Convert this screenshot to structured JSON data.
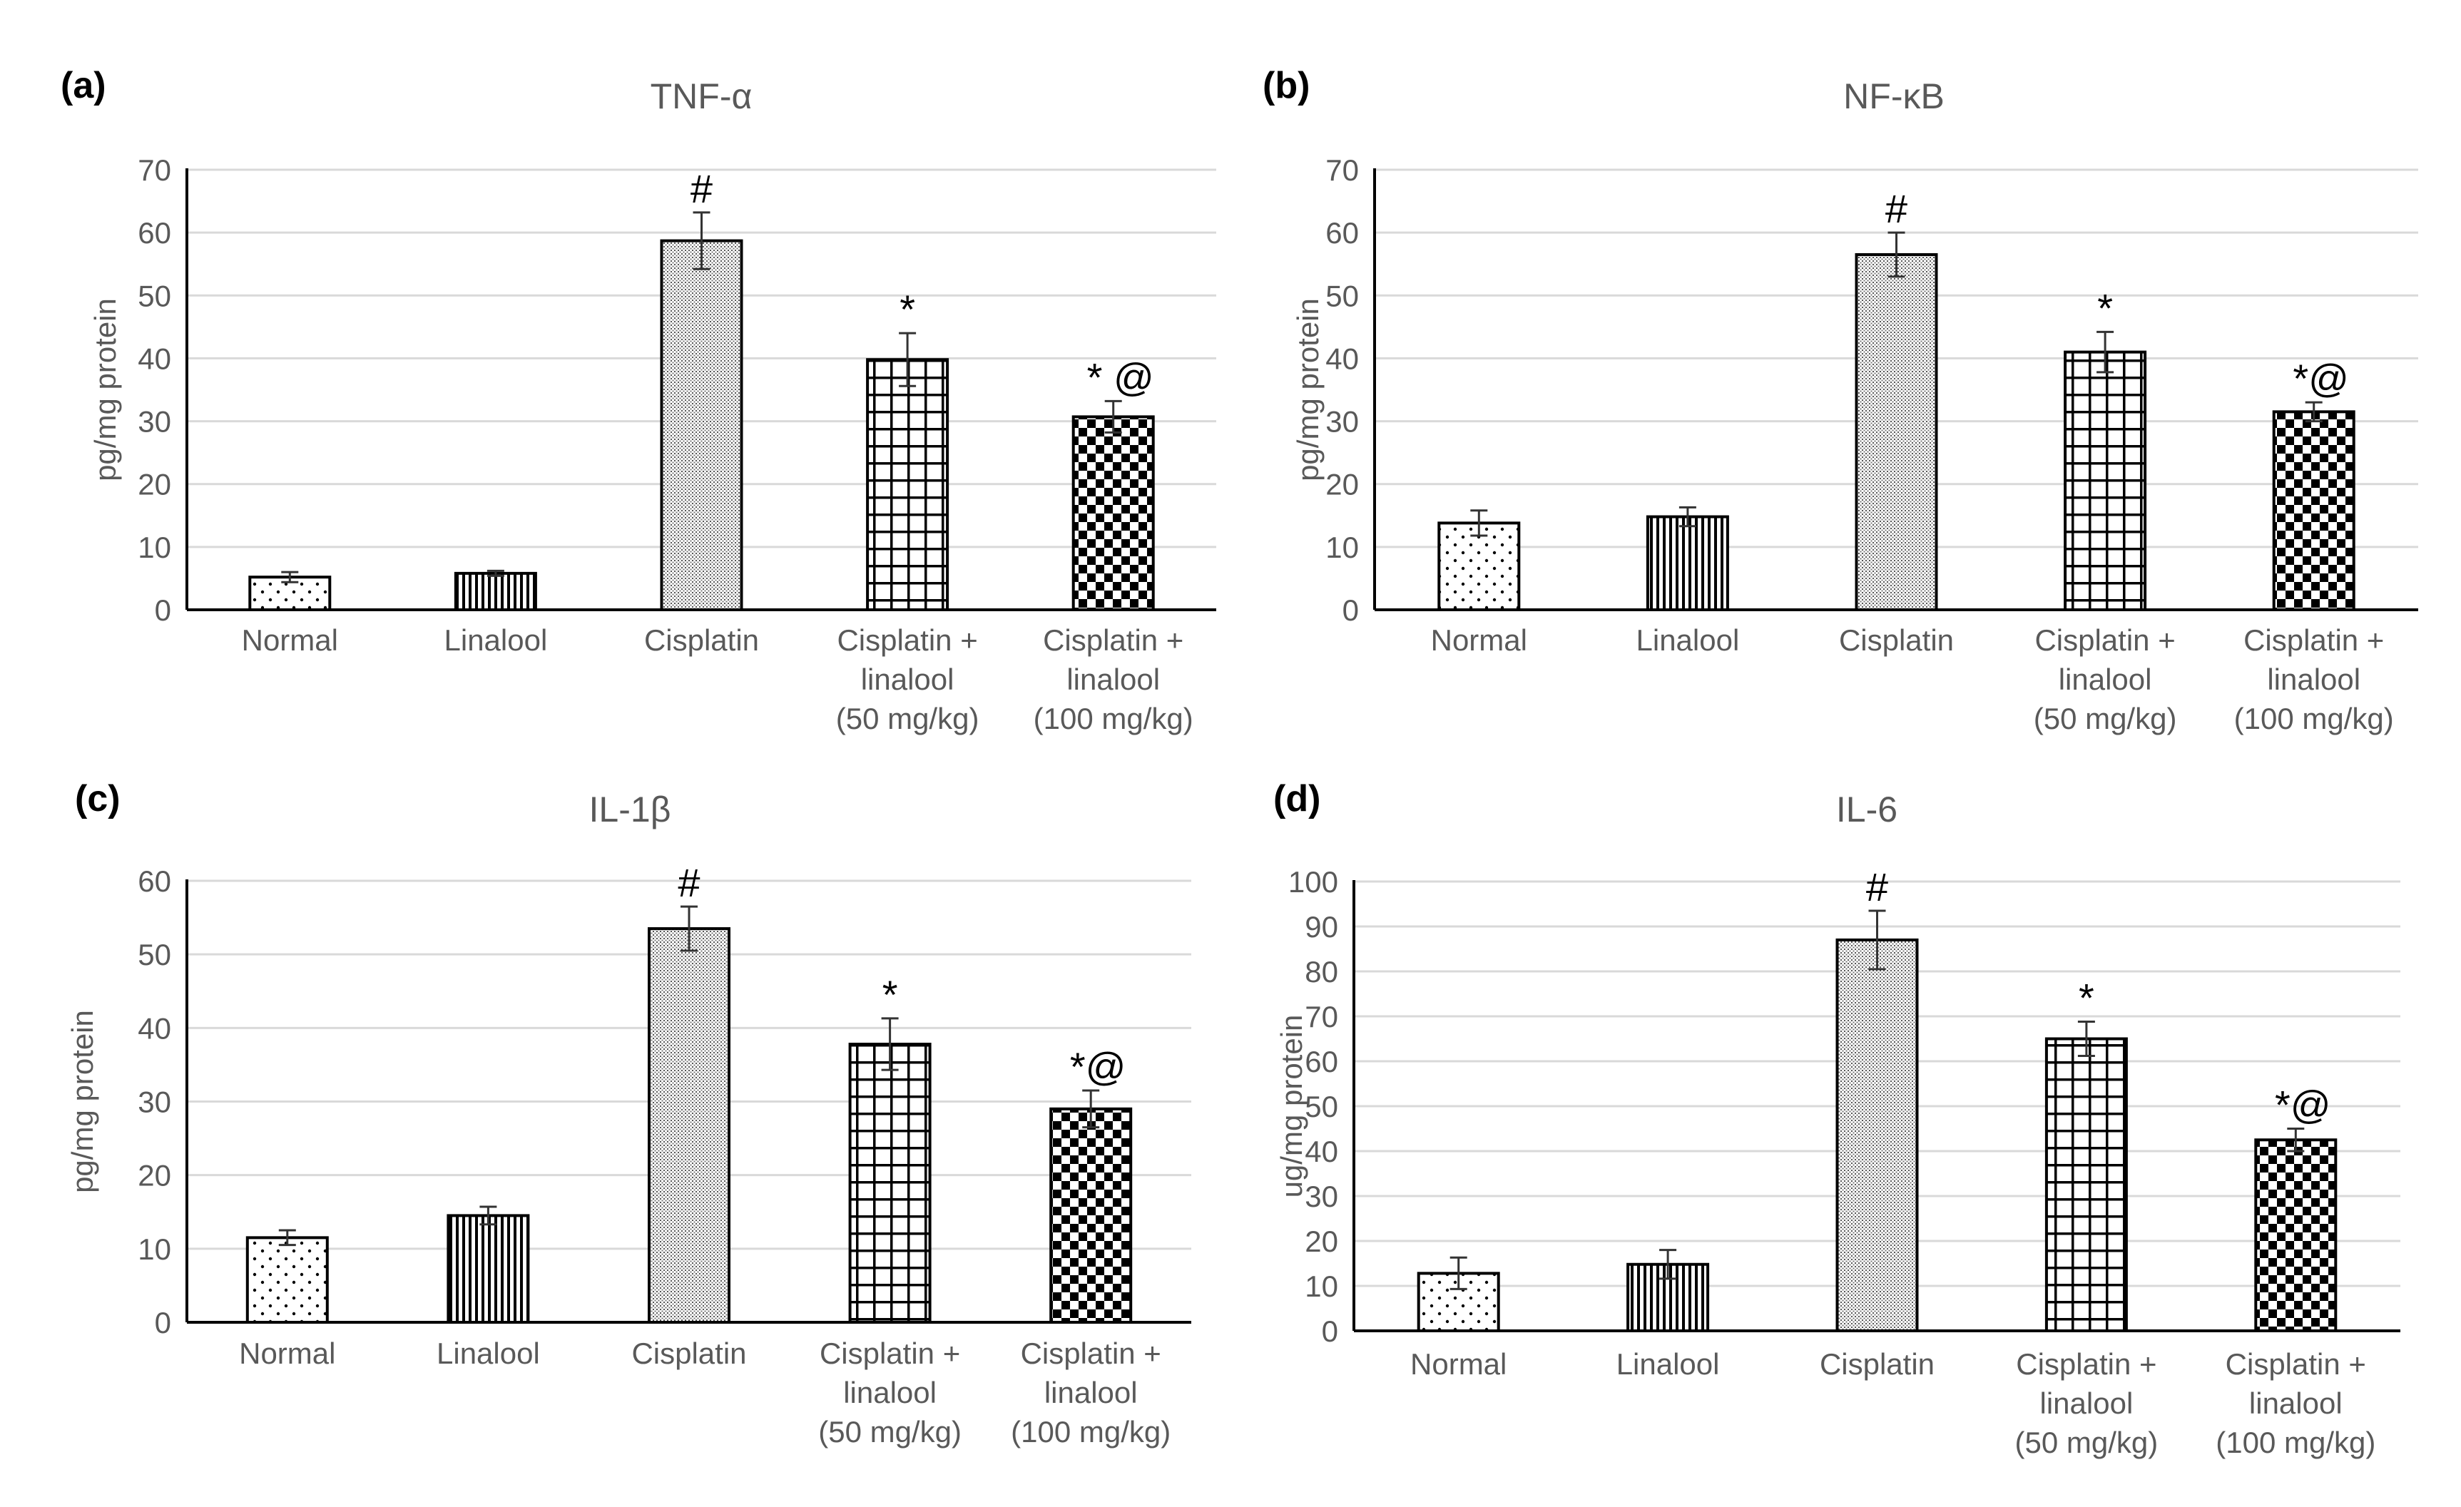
{
  "chart_data": [
    {
      "type": "bar",
      "panel": "(a)",
      "title": "TNF-α",
      "ylabel": "pg/mg protein",
      "xlabel": "",
      "ylim": [
        0,
        70
      ],
      "yticks": [
        0,
        10,
        20,
        30,
        40,
        50,
        60,
        70
      ],
      "grid": true,
      "categories": [
        [
          "Normal"
        ],
        [
          "Linalool"
        ],
        [
          "Cisplatin"
        ],
        [
          "Cisplatin +",
          "linalool",
          "(50 mg/kg)"
        ],
        [
          "Cisplatin +",
          "linalool",
          "(100 mg/kg)"
        ]
      ],
      "values": [
        5.2,
        5.8,
        58.7,
        39.8,
        30.7
      ],
      "errors": [
        0.8,
        0.4,
        4.5,
        4.2,
        2.5
      ],
      "annotations": [
        "",
        "",
        "#",
        "*",
        "* @"
      ]
    },
    {
      "type": "bar",
      "panel": "(b)",
      "title": "NF-κB",
      "ylabel": "pg/mg protein",
      "xlabel": "",
      "ylim": [
        0,
        70
      ],
      "yticks": [
        0,
        10,
        20,
        30,
        40,
        50,
        60,
        70
      ],
      "grid": true,
      "categories": [
        [
          "Normal"
        ],
        [
          "Linalool"
        ],
        [
          "Cisplatin"
        ],
        [
          "Cisplatin +",
          "linalool",
          "(50 mg/kg)"
        ],
        [
          "Cisplatin +",
          "linalool",
          "(100 mg/kg)"
        ]
      ],
      "values": [
        13.8,
        14.8,
        56.5,
        41.0,
        31.5
      ],
      "errors": [
        2.0,
        1.5,
        3.5,
        3.2,
        1.5
      ],
      "annotations": [
        "",
        "",
        "#",
        "*",
        "*@"
      ]
    },
    {
      "type": "bar",
      "panel": "(c)",
      "title": "IL-1β",
      "ylabel": "pg/mg protein",
      "xlabel": "",
      "ylim": [
        0,
        60
      ],
      "yticks": [
        0,
        10,
        20,
        30,
        40,
        50,
        60
      ],
      "grid": true,
      "categories": [
        [
          "Normal"
        ],
        [
          "Linalool"
        ],
        [
          "Cisplatin"
        ],
        [
          "Cisplatin +",
          "linalool",
          "(50 mg/kg)"
        ],
        [
          "Cisplatin +",
          "linalool",
          "(100 mg/kg)"
        ]
      ],
      "values": [
        11.5,
        14.5,
        53.5,
        37.8,
        29.0
      ],
      "errors": [
        1.0,
        1.2,
        3.0,
        3.5,
        2.5
      ],
      "annotations": [
        "",
        "",
        "#",
        "*",
        "*@"
      ]
    },
    {
      "type": "bar",
      "panel": "(d)",
      "title": "IL-6",
      "ylabel": "ug/mg protein",
      "xlabel": "",
      "ylim": [
        0,
        100
      ],
      "yticks": [
        0,
        10,
        20,
        30,
        40,
        50,
        60,
        70,
        80,
        90,
        100
      ],
      "grid": true,
      "categories": [
        [
          "Normal"
        ],
        [
          "Linalool"
        ],
        [
          "Cisplatin"
        ],
        [
          "Cisplatin +",
          "linalool",
          "(50 mg/kg)"
        ],
        [
          "Cisplatin +",
          "linalool",
          "(100 mg/kg)"
        ]
      ],
      "values": [
        12.8,
        14.8,
        87.0,
        65.0,
        42.5
      ],
      "errors": [
        3.5,
        3.2,
        6.5,
        3.8,
        2.5
      ],
      "annotations": [
        "",
        "",
        "#",
        "*",
        "*@"
      ]
    }
  ],
  "colors": {
    "bar_stroke": "#000000",
    "grid": "#d9d9d9",
    "axis": "#000000",
    "tick_text": "#595959",
    "title_text": "#595959",
    "panel_label": "#000000",
    "annotation": "#000000"
  },
  "bar_patterns": [
    "dots",
    "vertical-lines",
    "fine-dots",
    "grid",
    "checker"
  ]
}
